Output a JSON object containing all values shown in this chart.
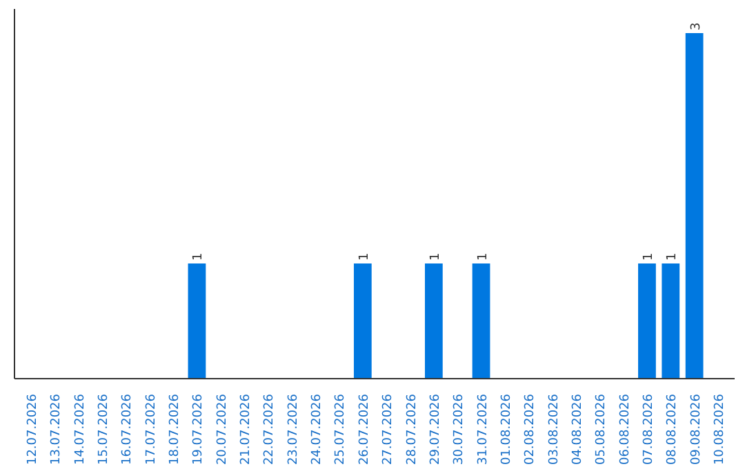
{
  "chart_data": {
    "type": "bar",
    "categories": [
      "12.07.2026",
      "13.07.2026",
      "14.07.2026",
      "15.07.2026",
      "16.07.2026",
      "17.07.2026",
      "18.07.2026",
      "19.07.2026",
      "20.07.2026",
      "21.07.2026",
      "22.07.2026",
      "23.07.2026",
      "24.07.2026",
      "25.07.2026",
      "26.07.2026",
      "27.07.2026",
      "28.07.2026",
      "29.07.2026",
      "30.07.2026",
      "31.07.2026",
      "01.08.2026",
      "02.08.2026",
      "03.08.2026",
      "04.08.2026",
      "05.08.2026",
      "06.08.2026",
      "07.08.2026",
      "08.08.2026",
      "09.08.2026",
      "10.08.2026"
    ],
    "values": [
      0,
      0,
      0,
      0,
      0,
      0,
      0,
      1,
      0,
      0,
      0,
      0,
      0,
      0,
      1,
      0,
      0,
      1,
      0,
      1,
      0,
      0,
      0,
      0,
      0,
      0,
      1,
      1,
      3,
      0
    ],
    "value_labels": [
      null,
      null,
      null,
      null,
      null,
      null,
      null,
      "1",
      null,
      null,
      null,
      null,
      null,
      null,
      "1",
      null,
      null,
      "1",
      null,
      "1",
      null,
      null,
      null,
      null,
      null,
      null,
      "1",
      "1",
      "3",
      null
    ],
    "color": "#0078e0",
    "tick_labels": "x",
    "grid": false
  }
}
